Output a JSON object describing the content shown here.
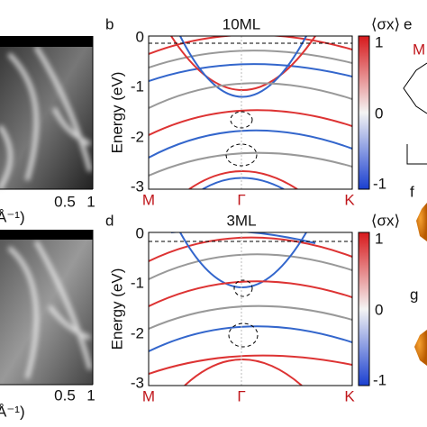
{
  "panel_a_top": {
    "xticks": [
      "0.5",
      "1"
    ],
    "xlabel": "Å⁻¹)"
  },
  "panel_a_bottom": {
    "xticks": [
      "0.5",
      "1"
    ],
    "xlabel": "Å⁻¹)"
  },
  "panel_b": {
    "label": "b",
    "title": "10ML",
    "ylabel": "Energy (eV)",
    "yticks": [
      "0",
      "-1",
      "-2",
      "-3"
    ],
    "xticks": [
      "M",
      "Γ",
      "K"
    ],
    "colorbar": {
      "label": "⟨σx⟩",
      "ticks": [
        "1",
        "0",
        "-1"
      ]
    }
  },
  "panel_d": {
    "label": "d",
    "title": "3ML",
    "ylabel": "Energy (eV)",
    "yticks": [
      "0",
      "-1",
      "-2",
      "-3"
    ],
    "xticks": [
      "M",
      "Γ",
      "K"
    ],
    "colorbar": {
      "label": "⟨σx⟩",
      "ticks": [
        "1",
        "0",
        "-1"
      ]
    }
  },
  "panel_e": {
    "label": "e",
    "point": "M"
  },
  "panel_f": {
    "label": "f"
  },
  "panel_g": {
    "label": "g"
  }
}
